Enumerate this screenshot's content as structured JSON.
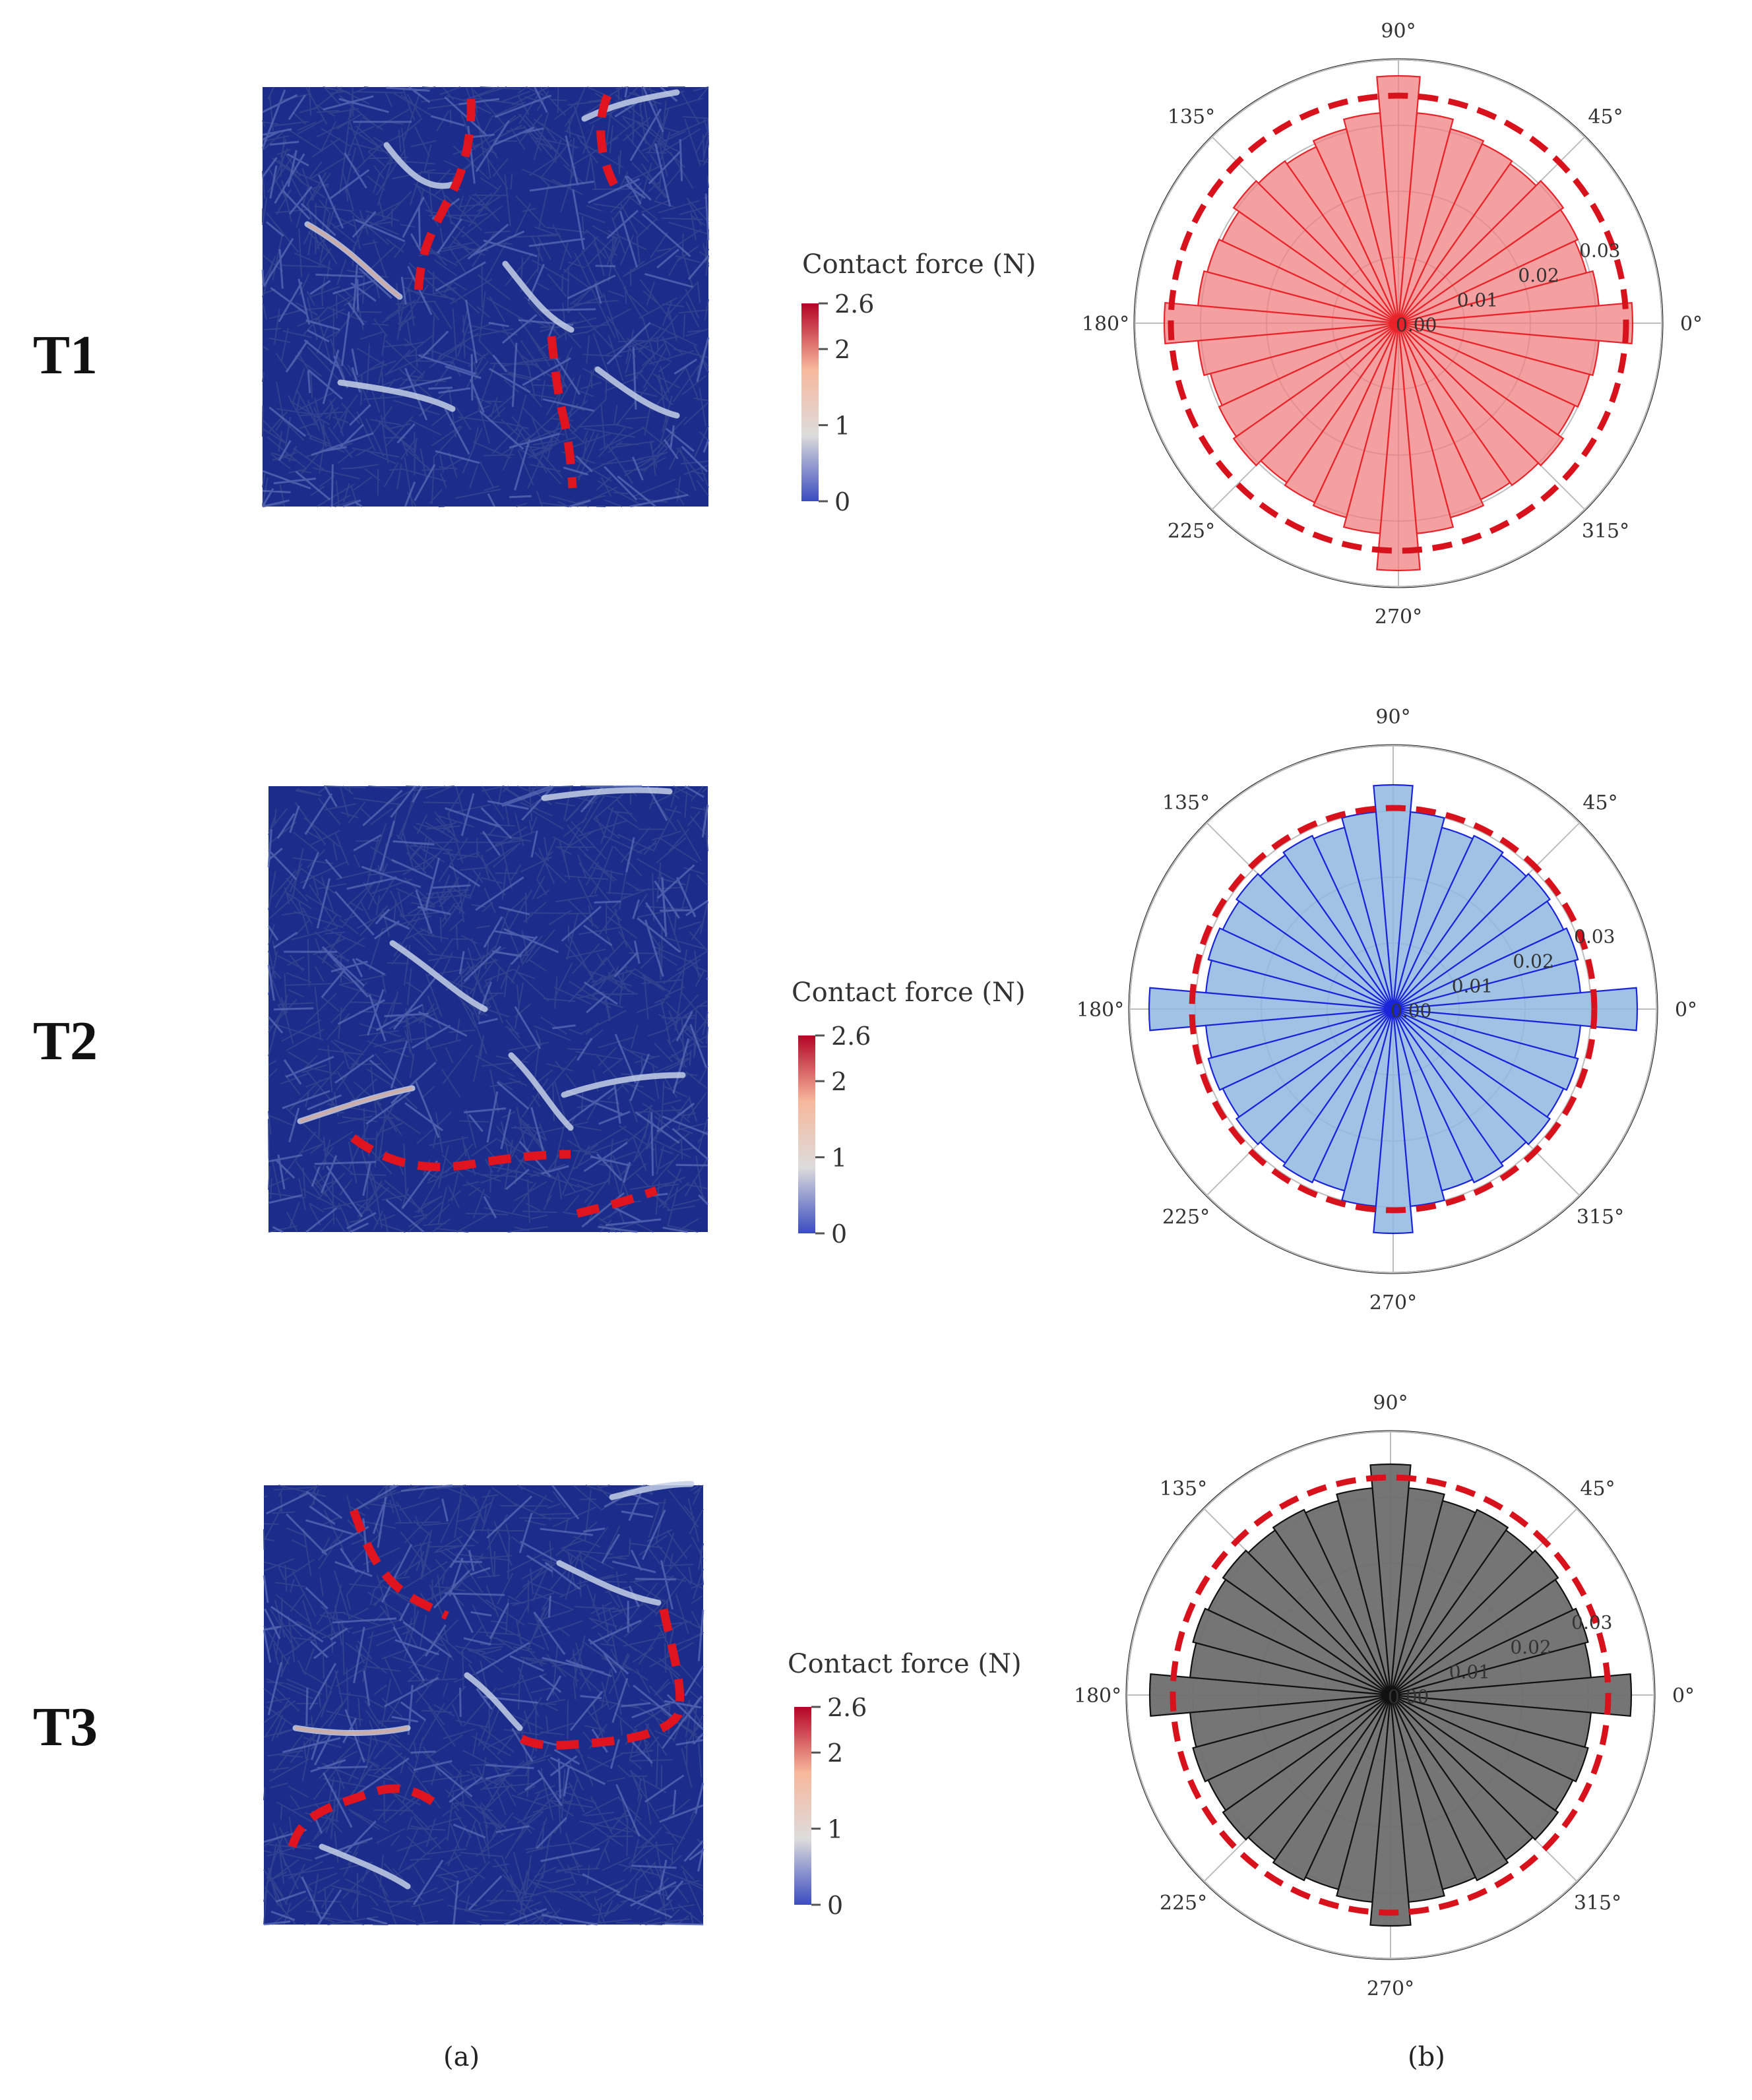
{
  "rows": [
    {
      "label": "T1",
      "colorbar_title": "Contact force (N)",
      "fill": "#f08080",
      "fill_opacity": 0.75,
      "edge": "#e8232a"
    },
    {
      "label": "T2",
      "colorbar_title": "Contact force (N)",
      "fill": "#8fb7e0",
      "fill_opacity": 0.85,
      "edge": "#1a24d8"
    },
    {
      "label": "T3",
      "colorbar_title": "Contact force (N)",
      "fill": "#6e6e6e",
      "fill_opacity": 0.95,
      "edge": "#111111"
    }
  ],
  "colorbar": {
    "ticks": [
      "2.6",
      "2",
      "1",
      "0"
    ],
    "tick_values": [
      2.6,
      2,
      1,
      0
    ],
    "min": 0,
    "max": 2.6,
    "colors": [
      "#b40426",
      "#f7b89c",
      "#dddcdc",
      "#3b4cc0"
    ]
  },
  "captions": {
    "a": "(a)",
    "b": "(b)"
  },
  "network_colors": {
    "background": "#1c2c8a",
    "strand": "#33448f",
    "strong": "#c4d0e6",
    "hot": "#e0a58b",
    "marker": "#e0141e"
  },
  "chart_data": [
    {
      "type": "polar-bar",
      "title": "T1",
      "bins": 36,
      "theta_labels": [
        "0°",
        "45°",
        "90°",
        "135°",
        "180°",
        "225°",
        "270°",
        "315°"
      ],
      "r_tick_labels": [
        "0.00",
        "0.01",
        "0.02",
        "0.03"
      ],
      "r_ticks": [
        0,
        0.01,
        0.02,
        0.03
      ],
      "r_max": 0.04,
      "values": [
        0.0355,
        0.0305,
        0.0295,
        0.03,
        0.0305,
        0.0295,
        0.03,
        0.0305,
        0.032,
        0.0375,
        0.032,
        0.0305,
        0.0295,
        0.03,
        0.0305,
        0.0295,
        0.03,
        0.0305,
        0.0355,
        0.0305,
        0.0295,
        0.03,
        0.0305,
        0.0295,
        0.03,
        0.0305,
        0.032,
        0.0375,
        0.032,
        0.0305,
        0.0295,
        0.03,
        0.0305,
        0.0295,
        0.03,
        0.0305
      ],
      "fit_radius": 0.0345
    },
    {
      "type": "polar-bar",
      "title": "T2",
      "bins": 36,
      "theta_labels": [
        "0°",
        "45°",
        "90°",
        "135°",
        "180°",
        "225°",
        "270°",
        "315°"
      ],
      "r_tick_labels": [
        "0.00",
        "0.01",
        "0.02",
        "0.03"
      ],
      "r_ticks": [
        0,
        0.01,
        0.02,
        0.03
      ],
      "r_max": 0.04,
      "values": [
        0.037,
        0.0285,
        0.029,
        0.0285,
        0.029,
        0.0285,
        0.029,
        0.0285,
        0.03,
        0.034,
        0.03,
        0.0285,
        0.029,
        0.0285,
        0.029,
        0.0285,
        0.029,
        0.0285,
        0.037,
        0.0285,
        0.029,
        0.0285,
        0.029,
        0.0285,
        0.029,
        0.0285,
        0.03,
        0.034,
        0.03,
        0.0285,
        0.029,
        0.0285,
        0.029,
        0.0285,
        0.029,
        0.0285
      ],
      "fit_radius": 0.0305
    },
    {
      "type": "polar-bar",
      "title": "T3",
      "bins": 36,
      "theta_labels": [
        "0°",
        "45°",
        "90°",
        "135°",
        "180°",
        "225°",
        "270°",
        "315°"
      ],
      "r_tick_labels": [
        "0.00",
        "0.01",
        "0.02",
        "0.03"
      ],
      "r_ticks": [
        0,
        0.01,
        0.02,
        0.03
      ],
      "r_max": 0.04,
      "values": [
        0.0365,
        0.0305,
        0.031,
        0.0305,
        0.031,
        0.0305,
        0.031,
        0.0305,
        0.0315,
        0.035,
        0.0315,
        0.0305,
        0.031,
        0.0305,
        0.031,
        0.0305,
        0.031,
        0.0305,
        0.0365,
        0.0305,
        0.031,
        0.0305,
        0.031,
        0.0305,
        0.031,
        0.0305,
        0.0315,
        0.035,
        0.0315,
        0.0305,
        0.031,
        0.0305,
        0.031,
        0.0305,
        0.031,
        0.0305
      ],
      "fit_radius": 0.033
    }
  ]
}
